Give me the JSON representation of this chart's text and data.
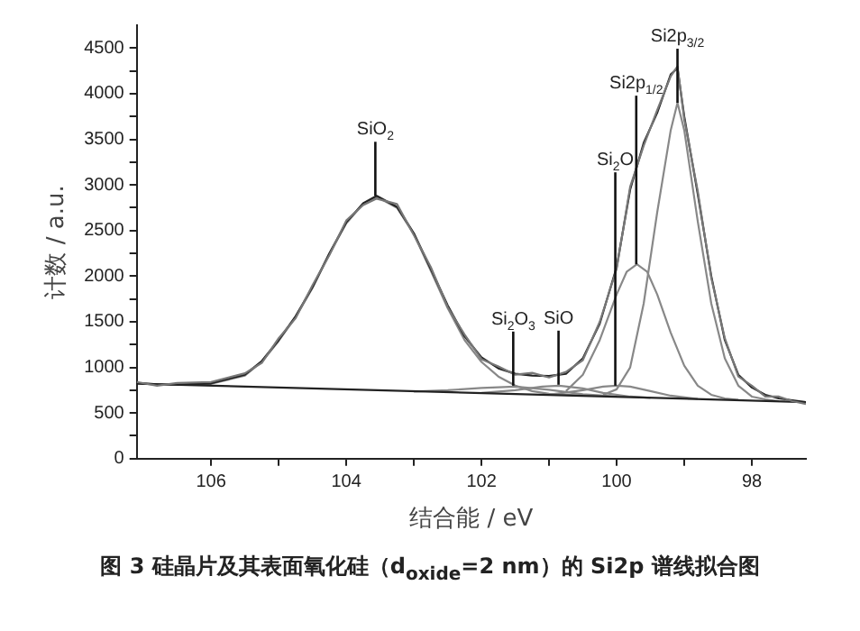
{
  "chart_data": {
    "type": "line",
    "title": "图 3  硅晶片及其表面氧化硅（d$_{oxide}$=2 nm）的 Si2p 谱线拟合图",
    "xlabel": "结合能 / eV",
    "ylabel": "计数 / a.u.",
    "xlim": [
      107.1,
      97.2
    ],
    "xticks": [
      106,
      {
        "value": 105,
        "label": null
      },
      104,
      {
        "value": 103,
        "label": null
      },
      102,
      {
        "value": 101,
        "label": null
      },
      100,
      {
        "value": 99,
        "label": null
      },
      98
    ],
    "ylim": [
      0,
      4750
    ],
    "yticks": [
      0,
      {
        "value": 250,
        "label": null
      },
      500,
      {
        "value": 750,
        "label": null
      },
      1000,
      {
        "value": 1250,
        "label": null
      },
      1500,
      {
        "value": 1750,
        "label": null
      },
      2000,
      {
        "value": 2250,
        "label": null
      },
      2500,
      {
        "value": 2750,
        "label": null
      },
      3000,
      {
        "value": 3250,
        "label": null
      },
      3500,
      {
        "value": 3750,
        "label": null
      },
      4000,
      {
        "value": 4250,
        "label": null
      },
      4500
    ],
    "grid": false,
    "legend": false,
    "marker": "none",
    "line_style": "solid",
    "series": [
      {
        "color": "#777777",
        "x": [
          107.1,
          106.8,
          106.5,
          106,
          105.5,
          105.25,
          105,
          104.75,
          104.5,
          104.25,
          104,
          103.75,
          103.55,
          103.25,
          103,
          102.75,
          102.5,
          102.25,
          102,
          101.75,
          101.5,
          101.25,
          101,
          100.75,
          100.5,
          100.25,
          100,
          99.8,
          99.6,
          99.4,
          99.2,
          99.1,
          99,
          98.8,
          98.6,
          98.4,
          98.2,
          98,
          97.8,
          97.6,
          97.4,
          97.2
        ],
        "values": [
          840,
          800,
          830,
          840,
          935,
          1050,
          1320,
          1540,
          1900,
          2230,
          2610,
          2780,
          2850,
          2790,
          2450,
          2100,
          1660,
          1360,
          1090,
          1010,
          920,
          940,
          890,
          950,
          1080,
          1500,
          2080,
          2980,
          3430,
          3820,
          4190,
          4300,
          3720,
          2930,
          1980,
          1320,
          900,
          800,
          680,
          680,
          630,
          600
        ]
      },
      {
        "color": "#222222",
        "x": [
          107.1,
          106.8,
          106.5,
          106,
          105.5,
          105.25,
          105,
          104.75,
          104.5,
          104.25,
          104,
          103.75,
          103.55,
          103.25,
          103,
          102.75,
          102.5,
          102.25,
          102,
          101.75,
          101.5,
          101.25,
          101,
          100.75,
          100.5,
          100.25,
          100,
          99.8,
          99.6,
          99.4,
          99.2,
          99.1,
          99,
          98.8,
          98.6,
          98.4,
          98.2,
          98,
          97.8,
          97.6,
          97.4,
          97.2
        ],
        "values": [
          830,
          815,
          812,
          825,
          920,
          1070,
          1300,
          1560,
          1880,
          2250,
          2590,
          2800,
          2880,
          2760,
          2470,
          2080,
          1680,
          1340,
          1110,
          990,
          930,
          910,
          905,
          930,
          1100,
          1480,
          2100,
          2950,
          3460,
          3790,
          4210,
          4280,
          3750,
          2900,
          2000,
          1300,
          920,
          780,
          700,
          660,
          640,
          620
        ]
      },
      {
        "color": "#222222",
        "x": [
          107.1,
          97.2
        ],
        "values": [
          822,
          620
        ]
      },
      {
        "color": "#888888",
        "x": [
          106.5,
          106,
          105.5,
          105.25,
          105,
          104.75,
          104.5,
          104.25,
          104,
          103.75,
          103.55,
          103.25,
          103,
          102.75,
          102.5,
          102.25,
          102,
          101.75,
          101.5,
          101.25,
          101,
          100.5
        ],
        "values": [
          810,
          820,
          910,
          1060,
          1290,
          1550,
          1870,
          2240,
          2580,
          2790,
          2870,
          2750,
          2460,
          2060,
          1650,
          1300,
          1060,
          900,
          800,
          740,
          710,
          690
        ]
      },
      {
        "color": "#888888",
        "x": [
          103,
          102.5,
          102,
          101.5,
          101,
          100.5,
          100
        ],
        "values": [
          735,
          750,
          775,
          790,
          755,
          705,
          680
        ]
      },
      {
        "color": "#888888",
        "x": [
          102,
          101.5,
          101.1,
          100.85,
          100.5,
          100.2,
          99.8,
          99.5
        ],
        "values": [
          720,
          750,
          790,
          800,
          770,
          720,
          680,
          667
        ]
      },
      {
        "color": "#888888",
        "x": [
          101,
          100.5,
          100.2,
          100,
          99.8,
          99.5,
          99.2,
          98.8
        ],
        "values": [
          700,
          750,
          790,
          800,
          790,
          740,
          690,
          655
        ]
      },
      {
        "color": "#888888",
        "x": [
          100.75,
          100.5,
          100.25,
          100,
          99.85,
          99.7,
          99.55,
          99.4,
          99.2,
          99,
          98.8,
          98.6,
          98.4,
          98.2
        ],
        "values": [
          740,
          920,
          1300,
          1800,
          2050,
          2130,
          2050,
          1800,
          1380,
          1020,
          800,
          700,
          660,
          645
        ]
      },
      {
        "color": "#888888",
        "x": [
          100.2,
          100,
          99.8,
          99.6,
          99.4,
          99.2,
          99.1,
          99,
          98.8,
          98.6,
          98.4,
          98.2,
          98,
          97.8,
          97.6
        ],
        "values": [
          700,
          760,
          1000,
          1700,
          2700,
          3600,
          3900,
          3600,
          2600,
          1700,
          1100,
          800,
          680,
          650,
          630
        ]
      }
    ],
    "annotations": [
      {
        "text": "SiO$_{2}$",
        "x": 103.57,
        "y": 2880
      },
      {
        "text": "Si$_{2}$O$_{3}$",
        "x": 101.53,
        "y": 800
      },
      {
        "text": "SiO",
        "x": 100.86,
        "y": 810
      },
      {
        "text": "Si$_{2}$O",
        "x": 100.02,
        "y": 800
      },
      {
        "text": "Si2p$_{1/2}$",
        "x": 99.71,
        "y": 2130
      },
      {
        "text": "Si2p$_{3/2}$",
        "x": 99.1,
        "y": 3900
      }
    ]
  }
}
